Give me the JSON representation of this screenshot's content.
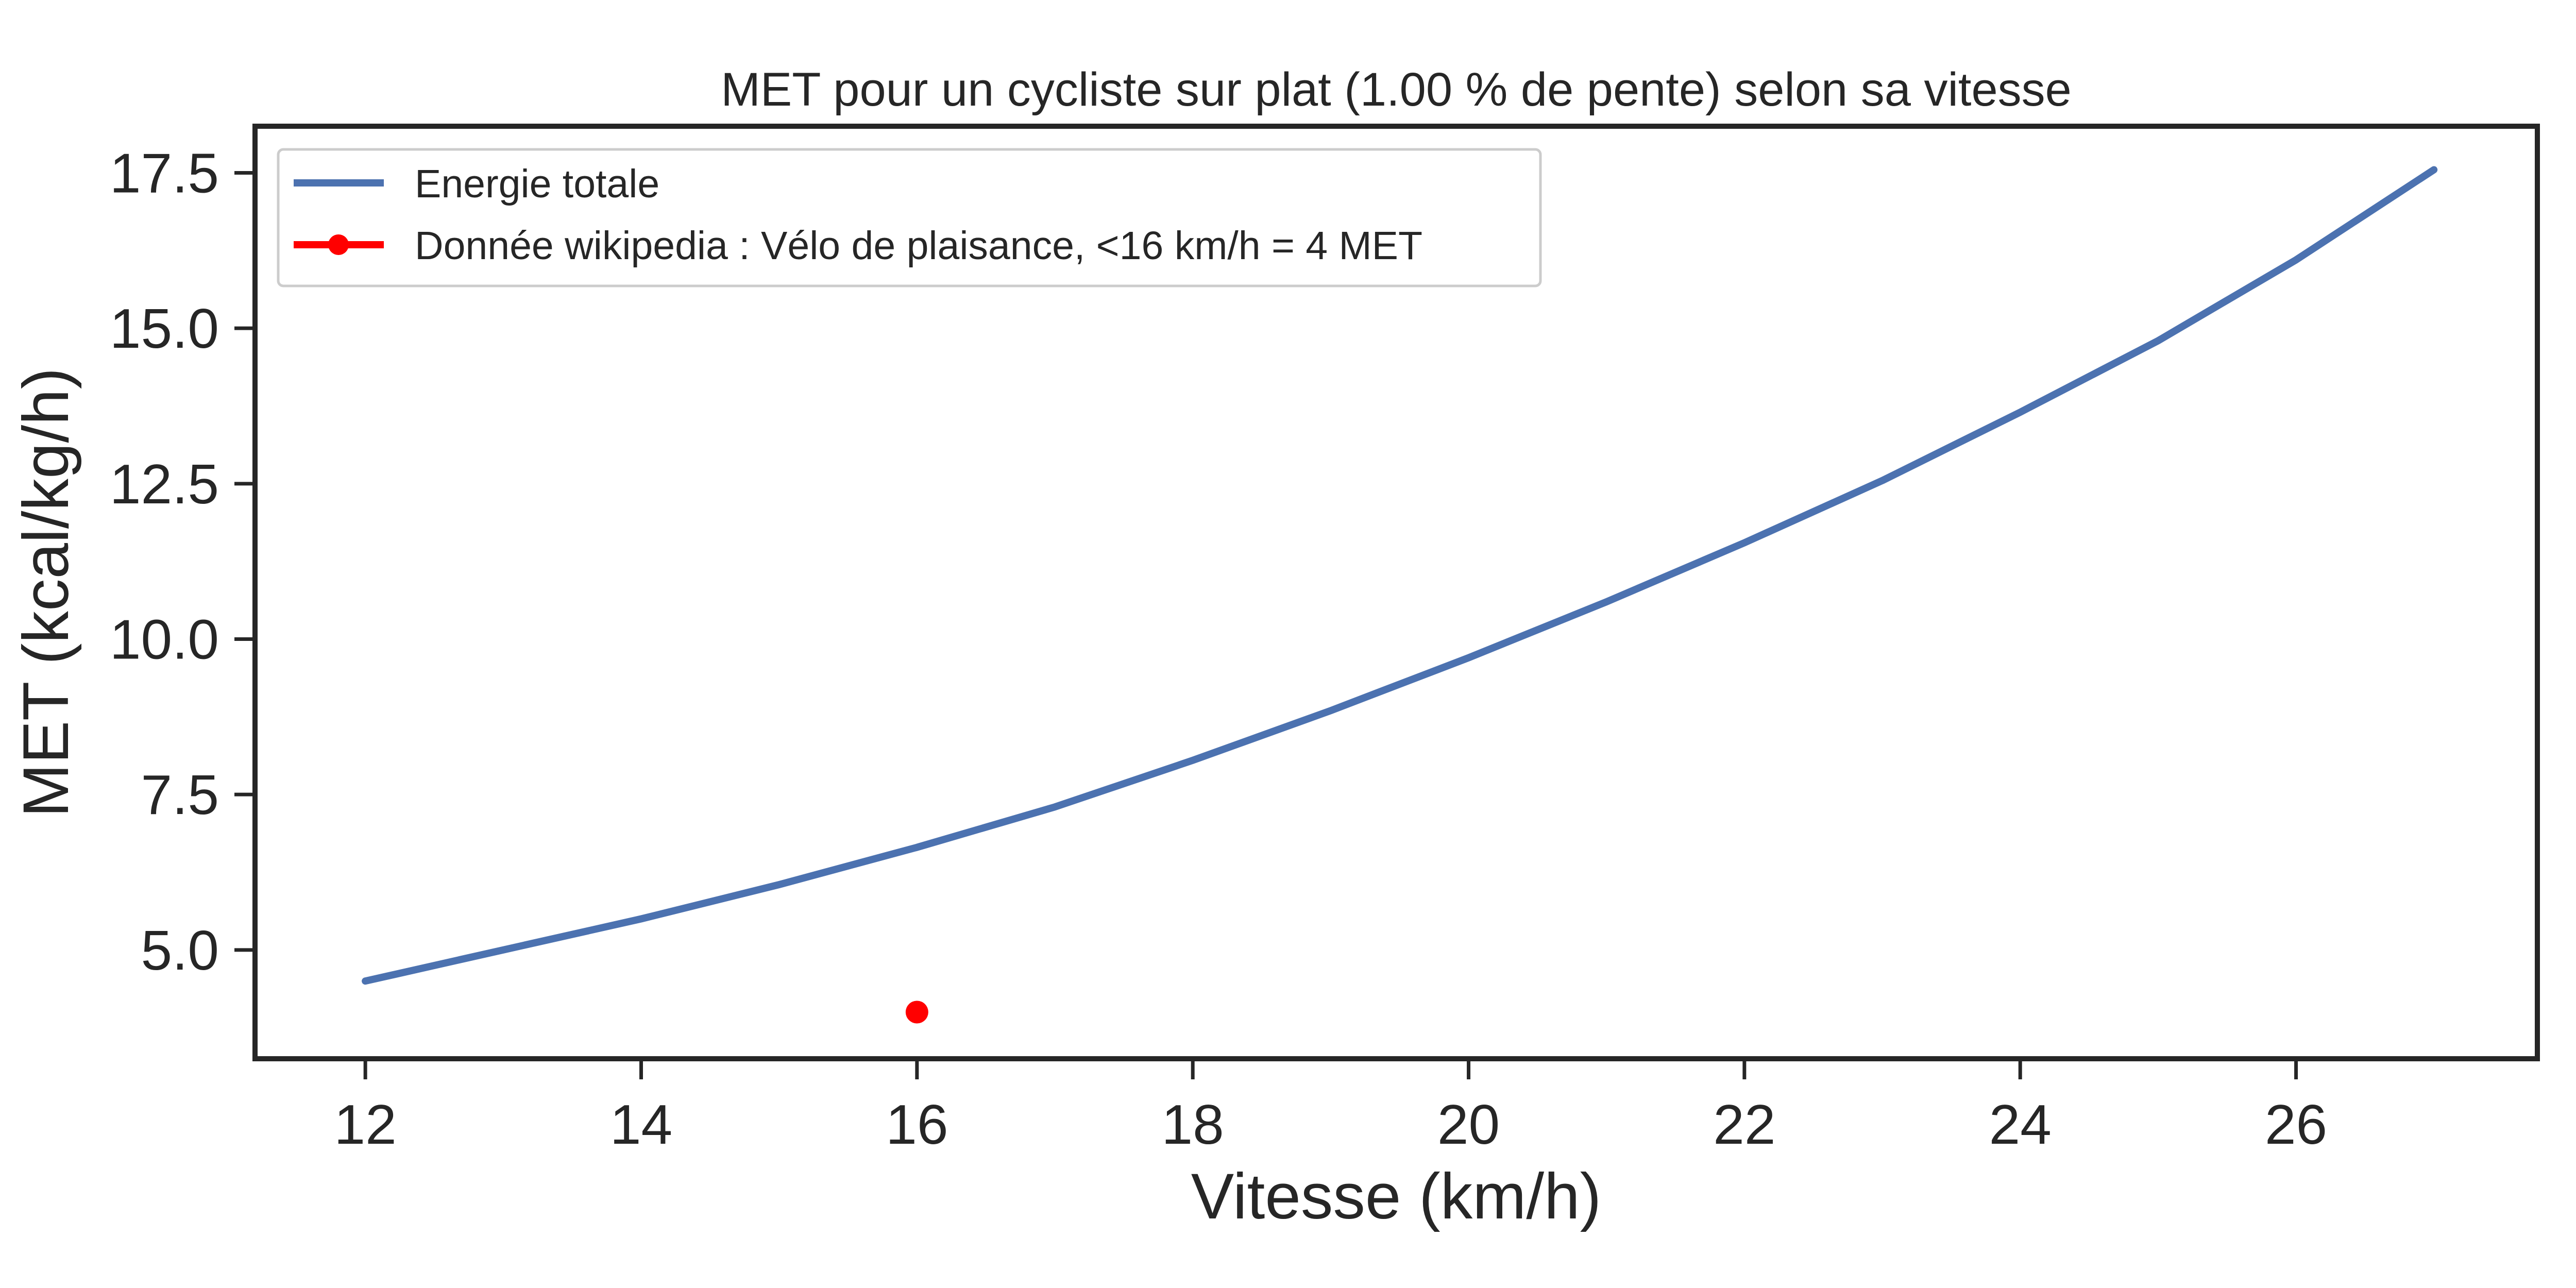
{
  "chart_data": {
    "type": "line",
    "title": "MET pour un cycliste sur plat (1.00 % de pente) selon sa vitesse",
    "xlabel": "Vitesse (km/h)",
    "ylabel": "MET (kcal/kg/h)",
    "xlim": [
      11.2,
      27.75
    ],
    "ylim": [
      3.25,
      18.25
    ],
    "x_ticks": [
      12,
      14,
      16,
      18,
      20,
      22,
      24,
      26
    ],
    "y_ticks": [
      5.0,
      7.5,
      10.0,
      12.5,
      15.0,
      17.5
    ],
    "x_tick_labels": [
      "12",
      "14",
      "16",
      "18",
      "20",
      "22",
      "24",
      "26"
    ],
    "y_tick_labels": [
      "5.0",
      "7.5",
      "10.0",
      "12.5",
      "15.0",
      "17.5"
    ],
    "grid": false,
    "legend_position": "top-left",
    "series": [
      {
        "name": "Energie totale",
        "kind": "line",
        "color": "#4c72b0",
        "x": [
          12,
          13,
          14,
          15,
          16,
          17,
          18,
          19,
          20,
          21,
          22,
          23,
          24,
          25,
          26,
          27
        ],
        "y": [
          4.5,
          5.0,
          5.5,
          6.05,
          6.65,
          7.3,
          8.05,
          8.85,
          9.7,
          10.6,
          11.55,
          12.55,
          13.65,
          14.8,
          16.1,
          17.55
        ]
      },
      {
        "name": "Donnée wikipedia : Vélo de plaisance, <16 km/h = 4 MET",
        "kind": "point",
        "color": "#ff0000",
        "x": [
          16
        ],
        "y": [
          4
        ]
      }
    ]
  }
}
